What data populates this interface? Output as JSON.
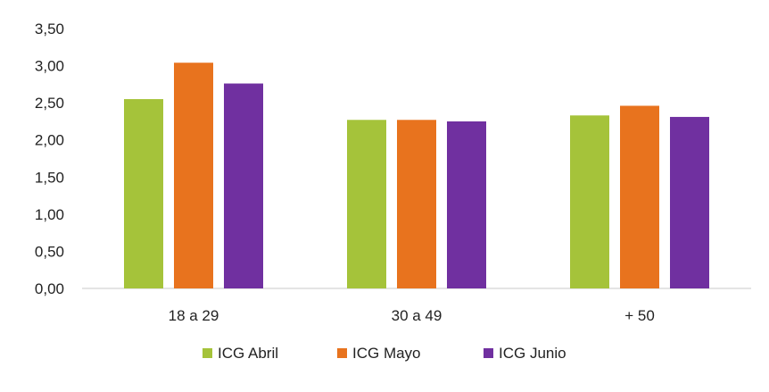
{
  "chart_data": {
    "type": "bar",
    "title": "",
    "xlabel": "",
    "ylabel": "",
    "categories": [
      "18 a 29",
      "30 a 49",
      "+ 50"
    ],
    "series": [
      {
        "name": "ICG Abril",
        "color": "#a5c33a",
        "values": [
          2.55,
          2.27,
          2.33
        ]
      },
      {
        "name": "ICG Mayo",
        "color": "#e8731e",
        "values": [
          3.04,
          2.27,
          2.46
        ]
      },
      {
        "name": "ICG Junio",
        "color": "#7030a0",
        "values": [
          2.76,
          2.25,
          2.31
        ]
      }
    ],
    "ylim": [
      0,
      3.5
    ],
    "yticks": [
      "0,00",
      "0,50",
      "1,00",
      "1,50",
      "2,00",
      "2,50",
      "3,00",
      "3,50"
    ],
    "grid": false,
    "legend_position": "bottom"
  }
}
